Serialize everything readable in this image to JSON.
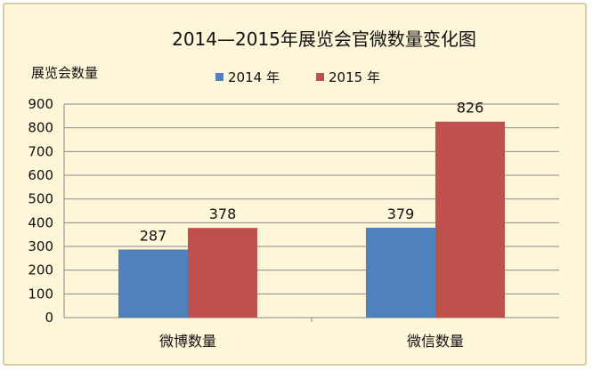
{
  "chart_data": {
    "type": "bar",
    "title": "2014—2015年展览会官微数量变化图",
    "ylabel": "展览会数量",
    "xlabel": "",
    "categories": [
      "微博数量",
      "微信数量"
    ],
    "series": [
      {
        "name": "2014 年",
        "values": [
          287,
          379
        ],
        "color": "#4f81bd"
      },
      {
        "name": "2015 年",
        "values": [
          378,
          826
        ],
        "color": "#c0504d"
      }
    ],
    "ylim": [
      0,
      900
    ],
    "yticks": [
      0,
      100,
      200,
      300,
      400,
      500,
      600,
      700,
      800,
      900
    ],
    "grid": true,
    "legend": "top-center"
  }
}
